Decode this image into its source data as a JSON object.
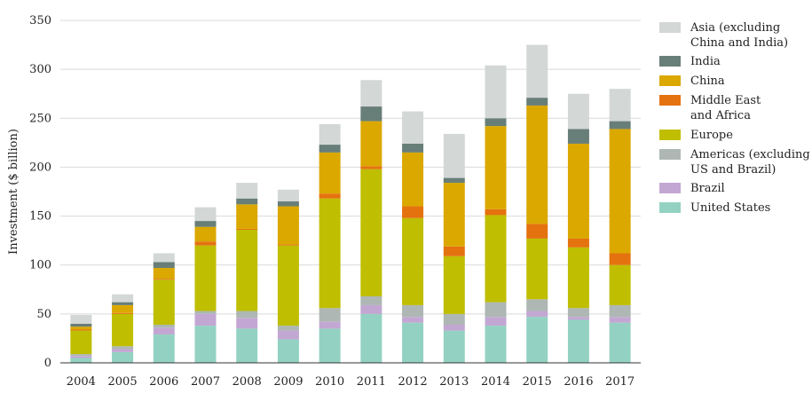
{
  "chart_data": {
    "type": "bar",
    "stacked": true,
    "ylabel": "Investment ($ billion)",
    "xlabel": "",
    "title": "",
    "ylim": [
      0,
      350
    ],
    "yticks": [
      0,
      50,
      100,
      150,
      200,
      250,
      300,
      350
    ],
    "grid": true,
    "legend_position": "right",
    "categories": [
      "2004",
      "2005",
      "2006",
      "2007",
      "2008",
      "2009",
      "2010",
      "2011",
      "2012",
      "2013",
      "2014",
      "2015",
      "2016",
      "2017"
    ],
    "series": [
      {
        "name": "United States",
        "color": "#93d2c2",
        "values": [
          5,
          11,
          29,
          38,
          35,
          24,
          35,
          50,
          41,
          33,
          38,
          47,
          44,
          41
        ]
      },
      {
        "name": "Brazil",
        "color": "#c3a7d3",
        "values": [
          2,
          3,
          7,
          12,
          11,
          9,
          7,
          9,
          6,
          6,
          9,
          6,
          3,
          6
        ]
      },
      {
        "name": "Americas (excluding US and Brazil)",
        "color": "#aeb7b3",
        "values": [
          2,
          3,
          3,
          3,
          7,
          5,
          14,
          9,
          12,
          11,
          15,
          12,
          9,
          12
        ]
      },
      {
        "name": "Europe",
        "color": "#bfbe00",
        "values": [
          24,
          33,
          46,
          67,
          83,
          82,
          112,
          130,
          89,
          59,
          89,
          62,
          62,
          41
        ]
      },
      {
        "name": "Middle East and Africa",
        "color": "#e4720f",
        "values": [
          1,
          1,
          1,
          4,
          1,
          1,
          5,
          3,
          12,
          10,
          6,
          15,
          9,
          12
        ]
      },
      {
        "name": "China",
        "color": "#dba800",
        "values": [
          3,
          8,
          11,
          15,
          25,
          39,
          42,
          46,
          55,
          65,
          85,
          121,
          97,
          127
        ]
      },
      {
        "name": "India",
        "color": "#687e78",
        "values": [
          3,
          3,
          6,
          6,
          6,
          5,
          8,
          15,
          9,
          5,
          8,
          8,
          15,
          8
        ]
      },
      {
        "name": "Asia (excluding China and India)",
        "color": "#d3d7d6",
        "values": [
          9,
          8,
          9,
          14,
          16,
          12,
          21,
          27,
          33,
          45,
          54,
          54,
          36,
          33
        ]
      }
    ],
    "legend_order": [
      {
        "label": "Asia (excluding",
        "label2": "China and India)",
        "color": "#d3d7d6"
      },
      {
        "label": "India",
        "label2": "",
        "color": "#687e78"
      },
      {
        "label": "China",
        "label2": "",
        "color": "#dba800"
      },
      {
        "label": "Middle East",
        "label2": "and Africa",
        "color": "#e4720f"
      },
      {
        "label": "Europe",
        "label2": "",
        "color": "#bfbe00"
      },
      {
        "label": "Americas (excluding",
        "label2": "US and Brazil)",
        "color": "#aeb7b3"
      },
      {
        "label": "Brazil",
        "label2": "",
        "color": "#c3a7d3"
      },
      {
        "label": "United States",
        "label2": "",
        "color": "#93d2c2"
      }
    ]
  }
}
